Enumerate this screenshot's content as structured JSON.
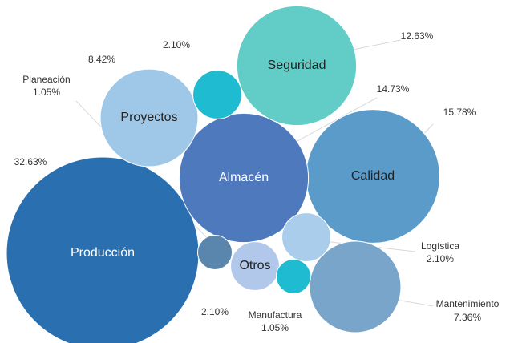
{
  "chart_data": {
    "type": "bubble",
    "categories": [
      "Producción",
      "Calidad",
      "Almacén",
      "Seguridad",
      "Proyectos",
      "Mantenimiento",
      "Otros",
      "Logística",
      null,
      "Planeación",
      "Manufactura"
    ],
    "values": [
      32.63,
      15.78,
      14.73,
      12.63,
      8.42,
      7.36,
      2.1,
      2.1,
      2.1,
      1.05,
      1.05
    ],
    "value_labels": [
      "32.63%",
      "15.78%",
      "14.73%",
      "12.63%",
      "8.42%",
      "7.36%",
      "2.10%",
      "2.10%",
      "2.10%",
      "1.05%",
      "1.05%"
    ],
    "colors": [
      "#2a70b0",
      "#5b9bca",
      "#4f79bd",
      "#62cdc7",
      "#9fc7e7",
      "#7aa5cb",
      "#b2c8ea",
      "#a9cdea",
      "#1fbbd0",
      "#5a86ae",
      "#1fbbd0"
    ]
  }
}
